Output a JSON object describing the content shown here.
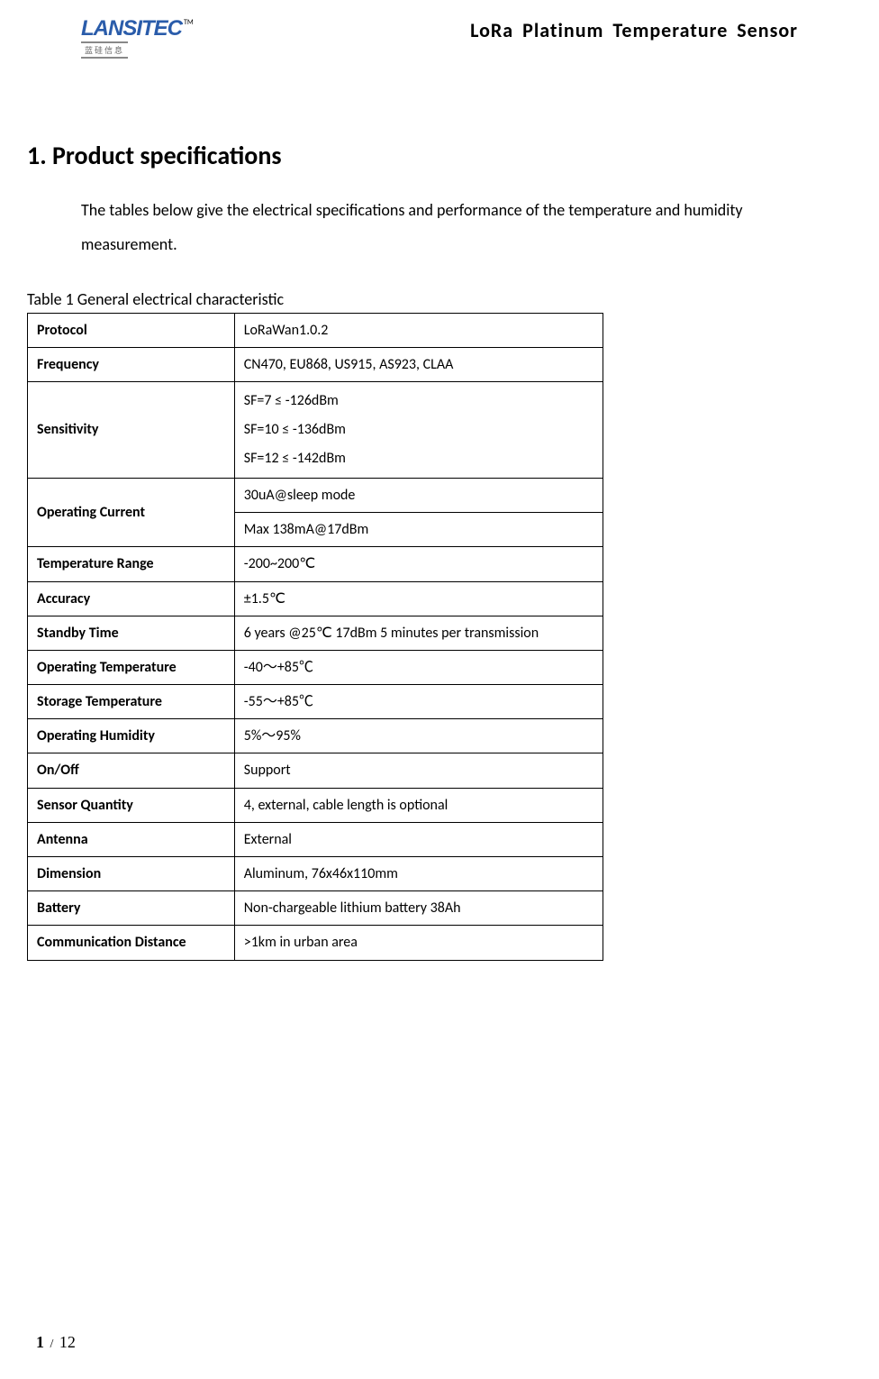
{
  "header": {
    "logo_main": "LANSITEC",
    "logo_tm": "TM",
    "logo_sub": "蓝硅信息",
    "doc_title": "LoRa  Platinum  Temperature  Sensor"
  },
  "section": {
    "heading": "1.  Product specifications",
    "intro": "The tables below give the electrical specifications and performance of the temperature and humidity measurement."
  },
  "table_caption": "Table 1 General electrical characteristic",
  "specs": {
    "rows": [
      {
        "label": "Protocol",
        "value": "LoRaWan1.0.2"
      },
      {
        "label": "Frequency",
        "value": "CN470, EU868, US915, AS923, CLAA"
      },
      {
        "label": "Sensitivity",
        "value": "SF=7 ≤ -126dBm\nSF=10 ≤ -136dBm\nSF=12 ≤ -142dBm",
        "multiline": true
      },
      {
        "label": "Operating Current",
        "value": "30uA@sleep mode",
        "rowspan_label": 2
      },
      {
        "label": "",
        "value": "Max 138mA@17dBm",
        "merged": true
      },
      {
        "label": "Temperature Range",
        "value": "-200~200℃"
      },
      {
        "label": "Accuracy",
        "value": "±1.5℃"
      },
      {
        "label": "Standby Time",
        "value": "6 years @25℃ 17dBm 5 minutes per transmission"
      },
      {
        "label": "Operating Temperature",
        "value": "-40～+85℃"
      },
      {
        "label": "Storage Temperature",
        "value": "-55～+85℃"
      },
      {
        "label": "Operating Humidity",
        "value": "5%～95%"
      },
      {
        "label": "On/Off",
        "value": "Support"
      },
      {
        "label": "Sensor Quantity",
        "value": "4, external, cable length is optional"
      },
      {
        "label": "Antenna",
        "value": "External"
      },
      {
        "label": "Dimension",
        "value": "Aluminum, 76x46x110mm"
      },
      {
        "label": "Battery",
        "value": "Non-chargeable lithium battery 38Ah"
      },
      {
        "label": "Communication Distance",
        "value": ">1km in urban area"
      }
    ]
  },
  "footer": {
    "current_page": "1",
    "separator": "/",
    "total_pages": "12"
  }
}
